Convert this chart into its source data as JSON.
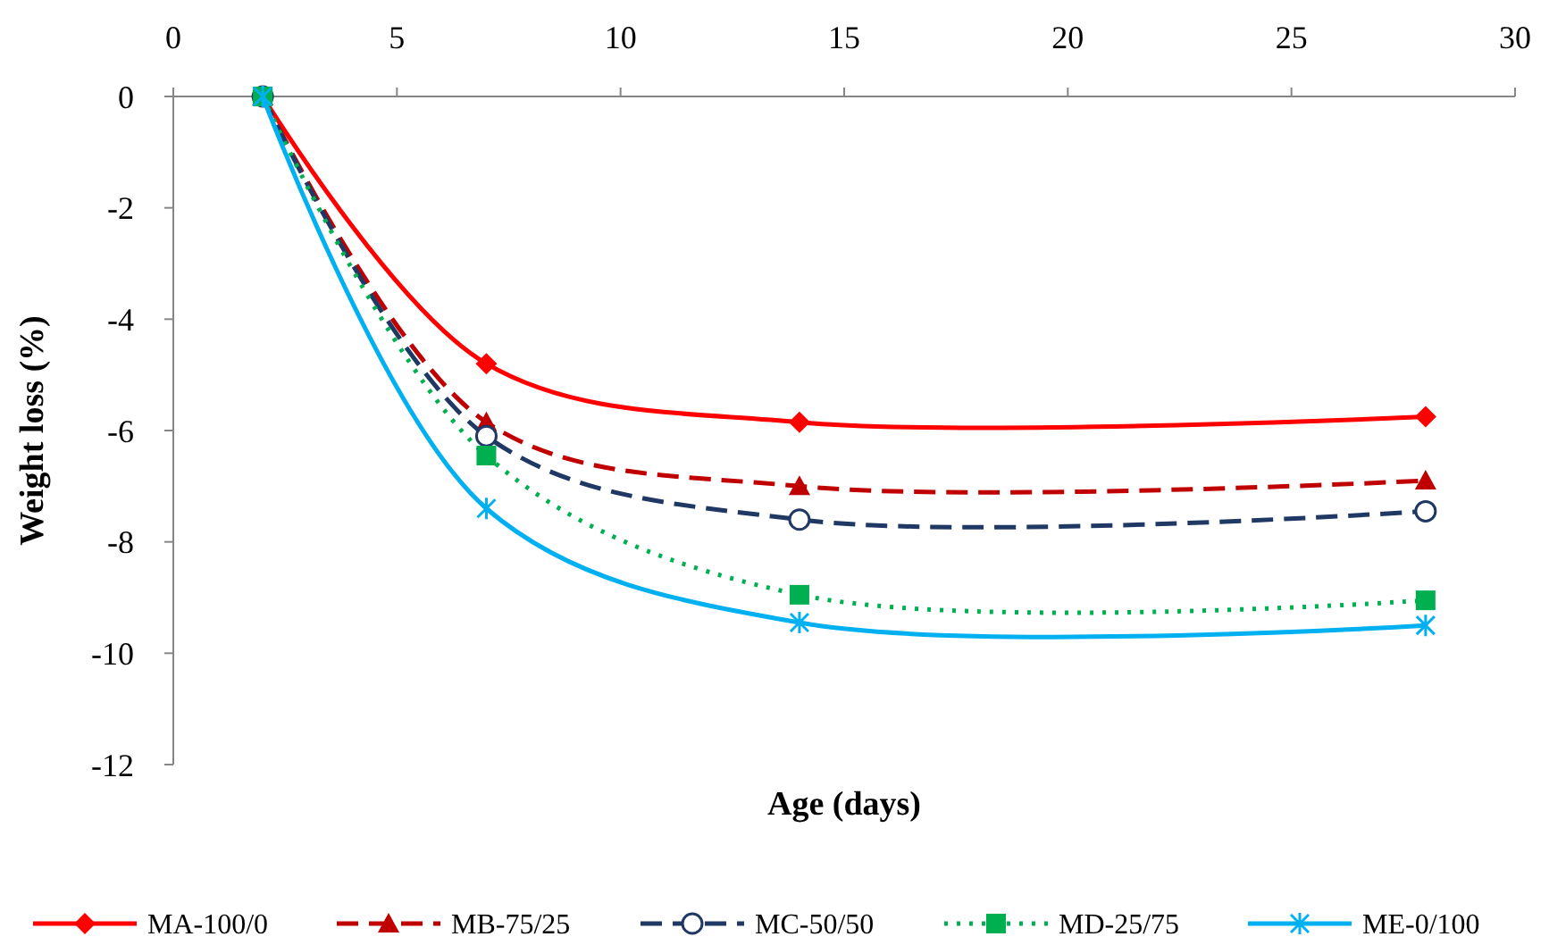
{
  "chart_data": {
    "type": "line",
    "xlabel": "Age (days)",
    "ylabel": "Weight loss (%)",
    "xlim": [
      0,
      30
    ],
    "xticks": [
      0,
      5,
      10,
      15,
      20,
      25,
      30
    ],
    "ylim": [
      -12,
      0
    ],
    "yticks": [
      -12,
      -10,
      -8,
      -6,
      -4,
      -2,
      0
    ],
    "grid": false,
    "legend": "bottom",
    "series": [
      {
        "name": "MA-100/0",
        "color": "#ff0000",
        "x": [
          2,
          7,
          14,
          28
        ],
        "values": [
          0,
          -4.8,
          -5.85,
          -5.75
        ],
        "marker": "diamond",
        "line_style": "solid"
      },
      {
        "name": "MB-75/25",
        "color": "#c00000",
        "x": [
          2,
          7,
          14,
          28
        ],
        "values": [
          0,
          -5.85,
          -7.0,
          -6.9
        ],
        "marker": "triangle",
        "line_style": "dashed"
      },
      {
        "name": "MC-50/50",
        "color": "#1f3864",
        "x": [
          2,
          7,
          14,
          28
        ],
        "values": [
          0,
          -6.1,
          -7.6,
          -7.45
        ],
        "marker": "circle",
        "line_style": "dashed"
      },
      {
        "name": "MD-25/75",
        "color": "#00b050",
        "x": [
          2,
          7,
          14,
          28
        ],
        "values": [
          0,
          -6.45,
          -8.95,
          -9.05
        ],
        "marker": "square",
        "line_style": "dotted"
      },
      {
        "name": "ME-0/100",
        "color": "#00b0f0",
        "x": [
          2,
          7,
          14,
          28
        ],
        "values": [
          0,
          -7.4,
          -9.45,
          -9.5
        ],
        "marker": "cross",
        "line_style": "solid"
      }
    ]
  }
}
